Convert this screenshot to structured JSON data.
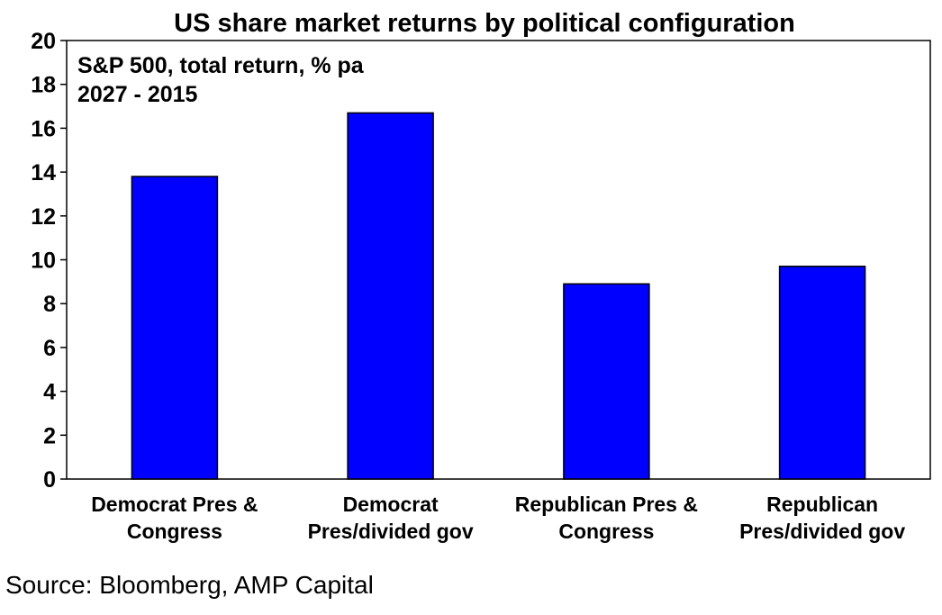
{
  "chart_data": {
    "type": "bar",
    "title": "US share market returns by political configuration",
    "annotation_lines": [
      "S&P 500, total return, % pa",
      "2027 - 2015"
    ],
    "categories": [
      [
        "Democrat Pres &",
        "Congress"
      ],
      [
        "Democrat",
        "Pres/divided gov"
      ],
      [
        "Republican Pres &",
        "Congress"
      ],
      [
        "Republican",
        "Pres/divided gov"
      ]
    ],
    "values": [
      13.8,
      16.7,
      8.9,
      9.7
    ],
    "ylim": [
      0,
      20
    ],
    "yticks": [
      0,
      2,
      4,
      6,
      8,
      10,
      12,
      14,
      16,
      18,
      20
    ],
    "xlabel": "",
    "ylabel": "",
    "grid": false,
    "bar_color": "#0000ff",
    "source": "Source: Bloomberg, AMP Capital"
  }
}
